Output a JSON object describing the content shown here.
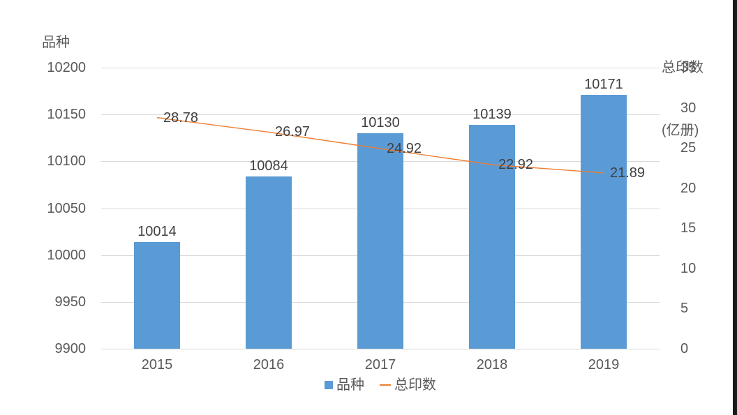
{
  "chart_data": {
    "type": "combo bar+line",
    "categories": [
      "2015",
      "2016",
      "2017",
      "2018",
      "2019"
    ],
    "series": [
      {
        "name": "品种",
        "type": "bar",
        "axis": "left",
        "color": "#5B9BD5",
        "values": [
          10014,
          10084,
          10130,
          10139,
          10171
        ],
        "labels": [
          "10014",
          "10084",
          "10130",
          "10139",
          "10171"
        ]
      },
      {
        "name": "总印数",
        "type": "line",
        "axis": "right",
        "color": "#ED7D31",
        "values": [
          28.78,
          26.97,
          24.92,
          22.92,
          21.89
        ],
        "labels": [
          "28.78",
          "26.97",
          "24.92",
          "22.92",
          "21.89"
        ]
      }
    ],
    "left_axis": {
      "title": "品种",
      "min": 9900,
      "max": 10200,
      "step": 50,
      "ticks": [
        "10200",
        "10150",
        "10100",
        "10050",
        "10000",
        "9950",
        "9900"
      ]
    },
    "right_axis": {
      "title_lines": [
        "总印数",
        "(亿册)"
      ],
      "min": 0,
      "max": 35,
      "step": 5,
      "ticks": [
        "35",
        "30",
        "25",
        "20",
        "15",
        "10",
        "5",
        "0"
      ]
    },
    "legend": {
      "position": "bottom",
      "items": [
        {
          "label": "品种",
          "marker": "square",
          "color": "#5B9BD5"
        },
        {
          "label": "总印数",
          "marker": "line",
          "color": "#ED7D31"
        }
      ]
    },
    "grid": {
      "horizontal": true,
      "color": "#D9D9D9"
    },
    "colors": {
      "bar": "#5B9BD5",
      "line": "#ED7D31",
      "axis_text": "#595959",
      "data_label_text": "#404040",
      "gridline": "#D9D9D9"
    }
  }
}
